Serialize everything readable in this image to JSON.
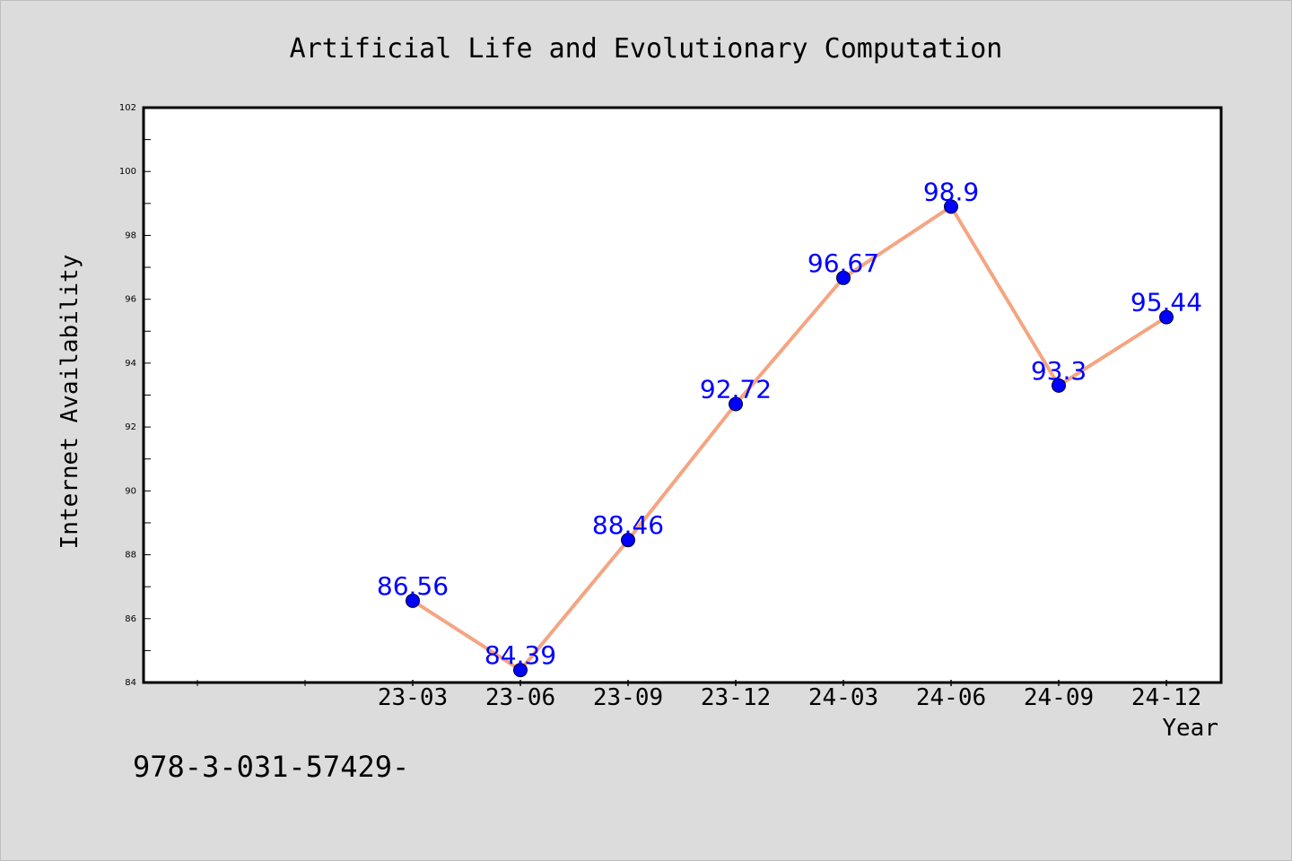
{
  "colors": {
    "background": "#dcdcdc",
    "plot_background": "#ffffff",
    "line": "#f4a582",
    "marker": "#0000ff",
    "label": "#0000ff",
    "text": "#000000"
  },
  "footer_text": "978-3-031-57429-",
  "chart_data": {
    "type": "line",
    "title": "Artificial Life and Evolutionary Computation",
    "xlabel": "Year",
    "ylabel": "Internet Availability",
    "categories": [
      "23-03",
      "23-06",
      "23-09",
      "23-12",
      "24-03",
      "24-06",
      "24-09",
      "24-12"
    ],
    "series": [
      {
        "values": [
          86.56,
          84.39,
          88.46,
          92.72,
          96.67,
          98.9,
          93.3,
          95.44
        ],
        "labels": [
          "86.56",
          "84.39",
          "88.46",
          "92.72",
          "96.67",
          "98.9",
          "93.3",
          "95.44"
        ]
      }
    ],
    "ylim": [
      84,
      102
    ],
    "yticks": [
      84,
      86,
      88,
      90,
      92,
      94,
      96,
      98,
      100,
      102
    ],
    "ytick_labels": [
      "84",
      "86",
      "88",
      "90",
      "92",
      "94",
      "96",
      "98",
      "100",
      "102"
    ],
    "grid": false,
    "legend": "none"
  }
}
